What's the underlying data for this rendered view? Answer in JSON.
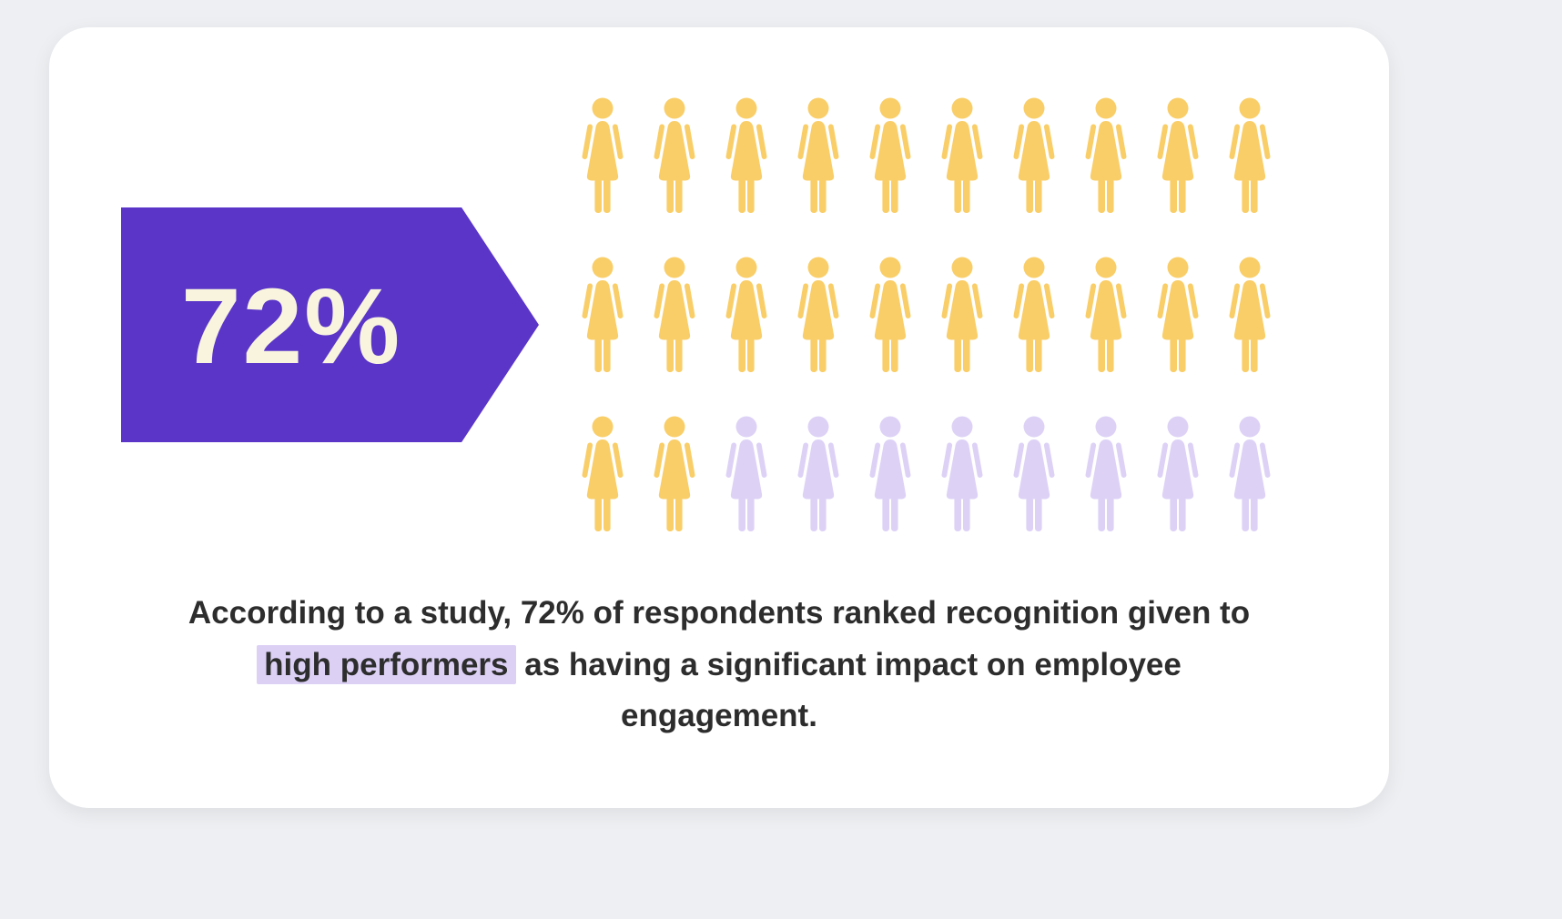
{
  "page": {
    "background_color": "#EDEFF2"
  },
  "card": {
    "background_color": "#FFFFFF"
  },
  "stat_callout": {
    "value": "72%",
    "arrow_color": "#5A35C8",
    "text_color": "#F8F4DE"
  },
  "caption": {
    "before": "According to a study, 72% of respondents ranked recognition given to ",
    "highlight": "high performers",
    "after": " as having a significant impact on employee engagement.",
    "highlight_color": "#DCD0F5",
    "text_color": "#2D2D2D"
  },
  "chart_data": {
    "type": "pictograph",
    "title": "72%",
    "value_percent": 72,
    "total_icons": 30,
    "filled_icons": 22,
    "icons_per_row": 10,
    "rows": 3,
    "icon": "woman-icon",
    "filled_color": "#F9CE68",
    "unfilled_color": "#DDD2F6",
    "annotation": "According to a study, 72% of respondents ranked recognition given to high performers as having a significant impact on employee engagement."
  }
}
